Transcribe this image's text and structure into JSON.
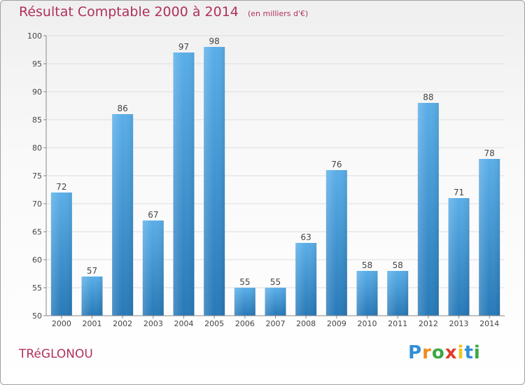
{
  "chart_data": {
    "type": "bar",
    "title": "Résultat Comptable 2000 à 2014",
    "subtitle": "(en milliers d'€)",
    "categories": [
      "2000",
      "2001",
      "2002",
      "2003",
      "2004",
      "2005",
      "2006",
      "2007",
      "2008",
      "2009",
      "2010",
      "2011",
      "2012",
      "2013",
      "2014"
    ],
    "values": [
      72,
      57,
      86,
      67,
      97,
      98,
      55,
      55,
      63,
      76,
      58,
      58,
      88,
      71,
      78
    ],
    "ylim": [
      50,
      100
    ],
    "yticks": [
      50,
      55,
      60,
      65,
      70,
      75,
      80,
      85,
      90,
      95,
      100
    ],
    "xlabel": "",
    "ylabel": "",
    "grid": true,
    "bar_color_top": "#5aaee8",
    "bar_color_bottom": "#2779b8"
  },
  "footer": {
    "town": "TRéGLONOU",
    "logo_letters": [
      "P",
      "r",
      "o",
      "x",
      "i",
      "t",
      "i"
    ],
    "logo_colors": [
      "#2f8fd6",
      "#f08a1c",
      "#3aa843",
      "#e33a2c",
      "#f0c419",
      "#2f8fd6",
      "#3aa843"
    ]
  },
  "colors": {
    "title": "#b0305e",
    "grid": "#dddddd",
    "axis": "#888888",
    "label": "#444444"
  }
}
